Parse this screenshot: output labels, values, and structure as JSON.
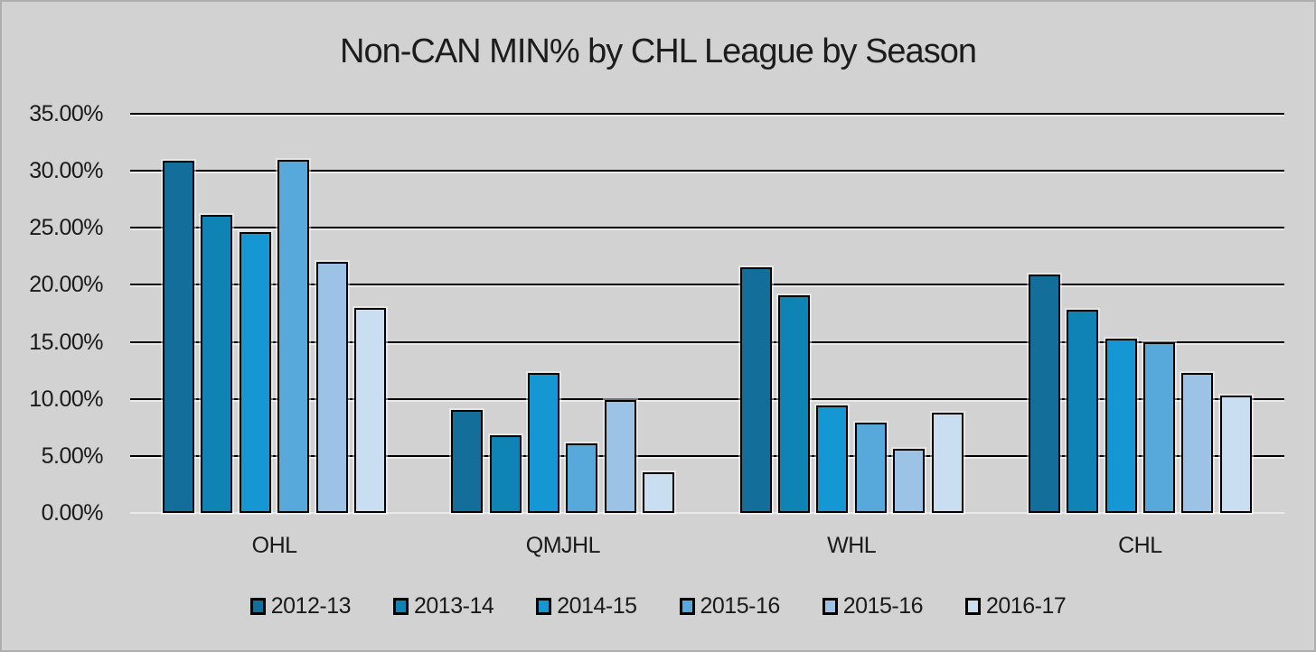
{
  "title": "Non-CAN MIN% by CHL League by Season",
  "background_color": "#d2d2d2",
  "gridline_color": "#000000",
  "chart_data": {
    "type": "bar",
    "title": "Non-CAN MIN% by CHL League by Season",
    "categories": [
      "OHL",
      "QMJHL",
      "WHL",
      "CHL"
    ],
    "series": [
      {
        "name": "2012-13",
        "color": "#136f99",
        "values": [
          30.9,
          9.0,
          21.5,
          20.9
        ]
      },
      {
        "name": "2013-14",
        "color": "#0f83b3",
        "values": [
          26.1,
          6.8,
          19.1,
          17.8
        ]
      },
      {
        "name": "2014-15",
        "color": "#1497d2",
        "values": [
          24.6,
          12.3,
          9.4,
          15.3
        ]
      },
      {
        "name": "2015-16",
        "color": "#58a9db",
        "values": [
          31.0,
          6.1,
          7.9,
          15.0
        ]
      },
      {
        "name": "2015-16",
        "color": "#9cc3e6",
        "values": [
          22.0,
          9.9,
          5.6,
          12.3
        ]
      },
      {
        "name": "2016-17",
        "color": "#cadef2",
        "values": [
          18.0,
          3.6,
          8.8,
          10.3
        ]
      }
    ],
    "yticks": [
      {
        "label": "35.00%",
        "value": 35
      },
      {
        "label": "30.00%",
        "value": 30
      },
      {
        "label": "25.00%",
        "value": 25
      },
      {
        "label": "20.00%",
        "value": 20
      },
      {
        "label": "15.00%",
        "value": 15
      },
      {
        "label": "10.00%",
        "value": 10
      },
      {
        "label": "5.00%",
        "value": 5
      },
      {
        "label": "0.00%",
        "value": 0
      }
    ],
    "ylim": [
      0,
      35
    ],
    "grid": true,
    "legend_position": "bottom"
  }
}
